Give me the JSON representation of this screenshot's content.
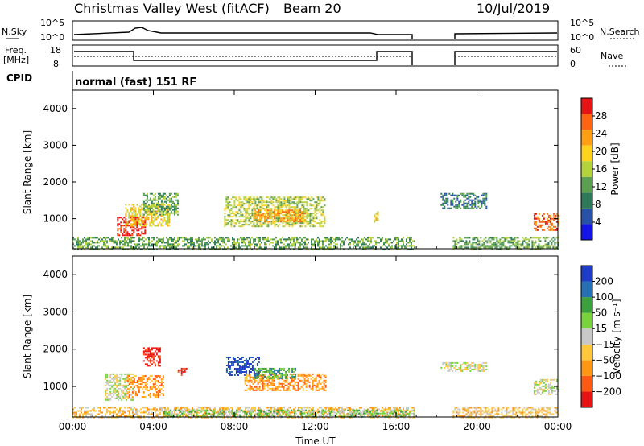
{
  "header": {
    "station": "Christmas Valley West (fitACF)",
    "beam": "Beam 20",
    "date": "10/Jul/2019"
  },
  "top_panels": {
    "nsky_label": "N.Sky",
    "nsky_ticks": [
      "10^5",
      "10^0"
    ],
    "nsearch_label": "N.Search",
    "freq_label_1": "Freq.",
    "freq_label_2": "[MHz]",
    "freq_ticks": [
      "18",
      "8"
    ],
    "nave_label": "Nave",
    "nave_ticks": [
      "60",
      "0"
    ],
    "cpid_label": "CPID",
    "cpid_text": "normal (fast) 151 RF"
  },
  "colors": {
    "power": [
      "#1414e6",
      "#2852a8",
      "#2e7a5a",
      "#5aa050",
      "#b4d23c",
      "#ffd21e",
      "#ffa014",
      "#ff6414",
      "#e61414"
    ],
    "velocity": [
      "#e61414",
      "#ff5a14",
      "#ff9614",
      "#ffc83c",
      "#c8c8c8",
      "#7ad23c",
      "#3ca03c",
      "#2870b4",
      "#1e3cc8"
    ]
  },
  "power_colorbar": {
    "label": "Power [dB]",
    "ticks": [
      "28",
      "24",
      "20",
      "16",
      "12",
      "8",
      "4"
    ]
  },
  "velocity_colorbar": {
    "label": "Velocity [m s⁻¹]",
    "ticks": [
      "200",
      "100",
      "50",
      "15",
      "−15",
      "−50",
      "−100",
      "−200"
    ]
  },
  "chart_data": [
    {
      "type": "heatmap",
      "panel": "power",
      "ylabel": "Slant Range [km]",
      "xlabel": "",
      "xlim": [
        0,
        24
      ],
      "ylim": [
        180,
        4500
      ],
      "x_ticks": [
        "00:00",
        "04:00",
        "08:00",
        "12:00",
        "16:00",
        "20:00",
        "00:00"
      ],
      "y_ticks": [
        1000,
        2000,
        3000,
        4000
      ],
      "regions": [
        {
          "x": [
            2.2,
            3.6
          ],
          "y": [
            550,
            1050
          ],
          "level": 8
        },
        {
          "x": [
            2.6,
            4.8
          ],
          "y": [
            800,
            1400
          ],
          "level": 5
        },
        {
          "x": [
            3.5,
            5.2
          ],
          "y": [
            1100,
            1700
          ],
          "level": 3
        },
        {
          "x": [
            7.5,
            12.5
          ],
          "y": [
            800,
            1600
          ],
          "level": 4
        },
        {
          "x": [
            9.0,
            11.5
          ],
          "y": [
            900,
            1250
          ],
          "level": 6
        },
        {
          "x": [
            14.9,
            15.1
          ],
          "y": [
            900,
            1200
          ],
          "level": 5
        },
        {
          "x": [
            18.2,
            20.5
          ],
          "y": [
            1300,
            1700
          ],
          "level": 2
        },
        {
          "x": [
            22.8,
            24.0
          ],
          "y": [
            700,
            1150
          ],
          "level": 7
        },
        {
          "x": [
            0.0,
            16.9
          ],
          "y": [
            180,
            500
          ],
          "level": 3
        },
        {
          "x": [
            18.8,
            24.0
          ],
          "y": [
            180,
            500
          ],
          "level": 3
        }
      ]
    },
    {
      "type": "heatmap",
      "panel": "velocity",
      "ylabel": "Slant Range [km]",
      "xlabel": "Time UT",
      "xlim": [
        0,
        24
      ],
      "ylim": [
        180,
        4500
      ],
      "x_ticks": [
        "00:00",
        "04:00",
        "08:00",
        "12:00",
        "16:00",
        "20:00",
        "00:00"
      ],
      "y_ticks": [
        1000,
        2000,
        3000,
        4000
      ],
      "regions": [
        {
          "x": [
            1.6,
            3.0
          ],
          "y": [
            650,
            1350
          ],
          "level": 4
        },
        {
          "x": [
            2.7,
            4.5
          ],
          "y": [
            700,
            1300
          ],
          "level": 2
        },
        {
          "x": [
            3.5,
            4.3
          ],
          "y": [
            1550,
            2050
          ],
          "level": 0
        },
        {
          "x": [
            5.2,
            5.6
          ],
          "y": [
            1300,
            1500
          ],
          "level": 0
        },
        {
          "x": [
            7.6,
            9.2
          ],
          "y": [
            1300,
            1800
          ],
          "level": 8
        },
        {
          "x": [
            8.5,
            12.5
          ],
          "y": [
            900,
            1350
          ],
          "level": 2
        },
        {
          "x": [
            9.0,
            11.0
          ],
          "y": [
            1200,
            1500
          ],
          "level": 6
        },
        {
          "x": [
            18.2,
            20.5
          ],
          "y": [
            1400,
            1650
          ],
          "level": 4
        },
        {
          "x": [
            22.8,
            24.0
          ],
          "y": [
            800,
            1200
          ],
          "level": 4
        },
        {
          "x": [
            0.0,
            16.9
          ],
          "y": [
            180,
            450
          ],
          "level": 3
        },
        {
          "x": [
            4.5,
            16.9
          ],
          "y": [
            180,
            380
          ],
          "level": 5
        },
        {
          "x": [
            18.8,
            24.0
          ],
          "y": [
            180,
            450
          ],
          "level": 3
        }
      ]
    }
  ]
}
